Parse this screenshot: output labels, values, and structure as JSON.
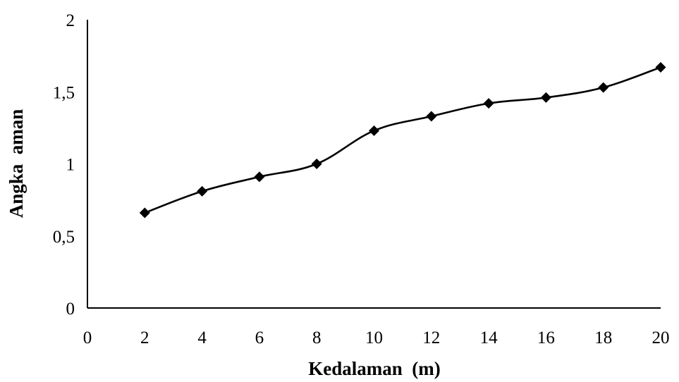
{
  "chart_data": {
    "type": "line",
    "xlabel": "Kedalaman  (m)",
    "ylabel": "Angka  aman",
    "xlim": [
      0,
      20
    ],
    "ylim": [
      0,
      2
    ],
    "x_ticks": [
      "0",
      "2",
      "4",
      "6",
      "8",
      "10",
      "12",
      "14",
      "16",
      "18",
      "20"
    ],
    "y_ticks": [
      "0",
      "0,5",
      "1",
      "1,5",
      "2"
    ],
    "x_tick_values": [
      0,
      2,
      4,
      6,
      8,
      10,
      12,
      14,
      16,
      18,
      20
    ],
    "y_tick_values": [
      0,
      0.5,
      1,
      1.5,
      2
    ],
    "grid": false,
    "legend": "none",
    "marker": "diamond",
    "line_color": "#000000",
    "series": [
      {
        "x": [
          2,
          4,
          6,
          8,
          10,
          12,
          14,
          16,
          18,
          20
        ],
        "y": [
          0.66,
          0.81,
          0.91,
          1.0,
          1.23,
          1.33,
          1.42,
          1.46,
          1.53,
          1.67
        ]
      }
    ]
  }
}
